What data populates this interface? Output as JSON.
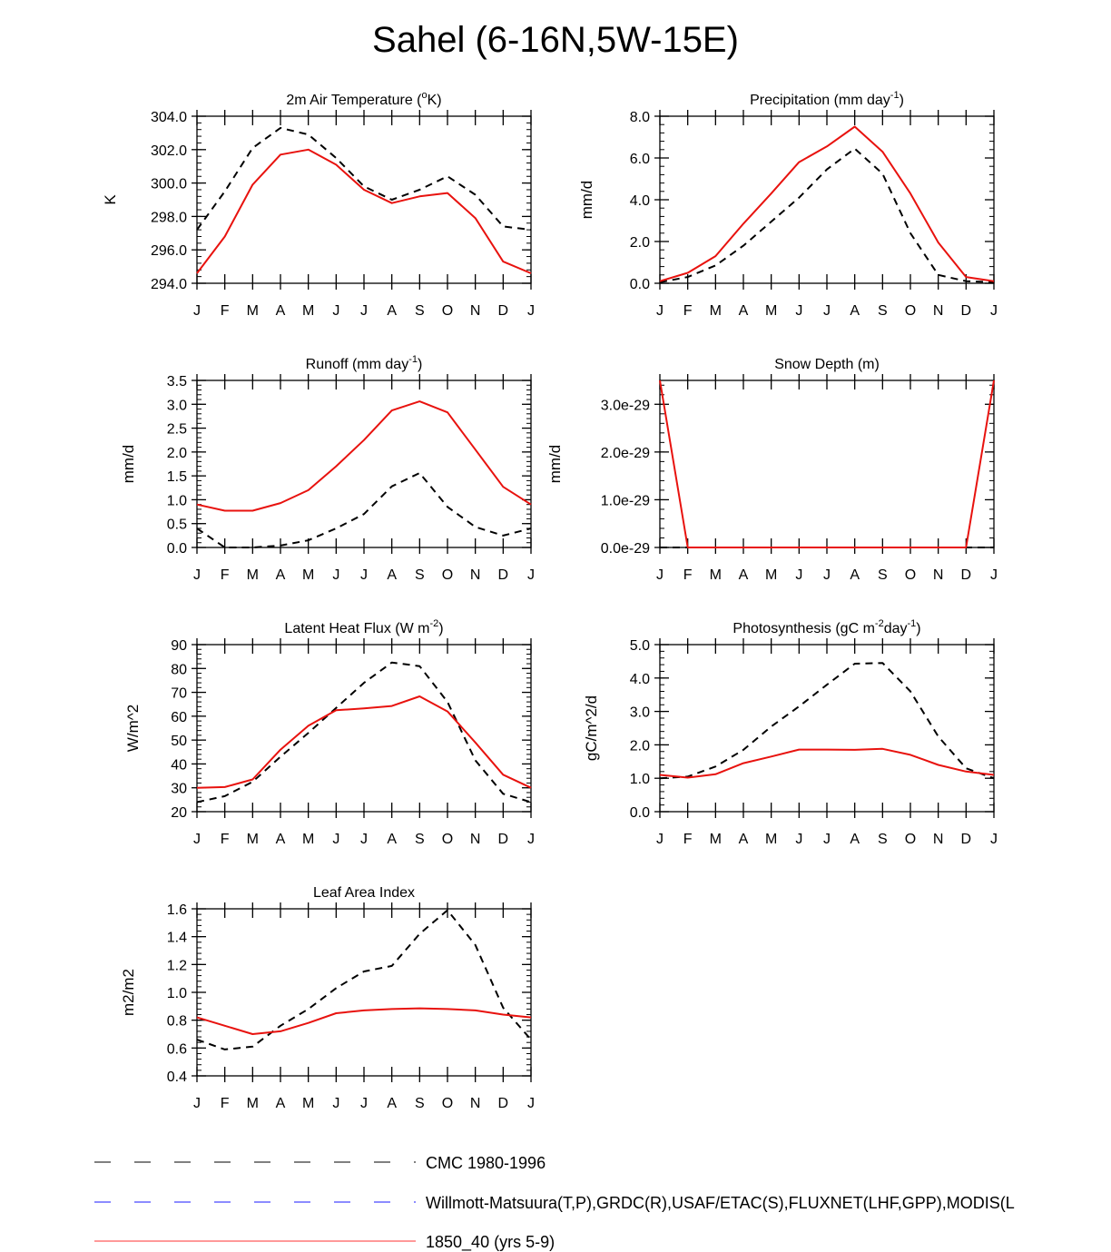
{
  "title": "Sahel (6-16N,5W-15E)",
  "colors": {
    "model": "#e8120e",
    "obs": "#000000",
    "obs2": "#1a1aff"
  },
  "months": [
    "J",
    "F",
    "M",
    "A",
    "M",
    "J",
    "J",
    "A",
    "S",
    "O",
    "N",
    "D",
    "J"
  ],
  "legend": [
    {
      "label": "CMC 1980-1996",
      "style": "dash",
      "color": "#000000"
    },
    {
      "label": "Willmott-Matsuura(T,P),GRDC(R),USAF/ETAC(S),FLUXNET(LHF,GPP),MODIS(L",
      "style": "dash",
      "color": "#1a1aff"
    },
    {
      "label": "1850_40 (yrs 5-9)",
      "style": "solid",
      "color": "#ff3333"
    }
  ],
  "chart_data": [
    {
      "type": "line",
      "title": "2m Air Temperature (oK)",
      "title_parts": {
        "pre": "2m Air Temperature (",
        "sup": "o",
        "post": "K)"
      },
      "ylabel": "K",
      "ylim": [
        294,
        304
      ],
      "yticks": [
        294,
        296,
        298,
        300,
        302,
        304
      ],
      "yticklabels": [
        "294.0",
        "296.0",
        "298.0",
        "300.0",
        "302.0",
        "304.0"
      ],
      "categories": [
        "J",
        "F",
        "M",
        "A",
        "M",
        "J",
        "J",
        "A",
        "S",
        "O",
        "N",
        "D",
        "J"
      ],
      "series": [
        {
          "name": "CMC 1980-1996",
          "style": "dash",
          "values": [
            297.2,
            299.5,
            302.1,
            303.3,
            302.9,
            301.5,
            299.8,
            299.0,
            299.6,
            300.4,
            299.3,
            297.4,
            297.2
          ]
        },
        {
          "name": "1850_40 (yrs 5-9)",
          "style": "solid",
          "values": [
            294.6,
            296.8,
            299.9,
            301.7,
            302.0,
            301.1,
            299.6,
            298.8,
            299.2,
            299.4,
            297.9,
            295.3,
            294.6
          ]
        }
      ]
    },
    {
      "type": "line",
      "title": "Precipitation (mm day-1)",
      "title_parts": {
        "pre": "Precipitation (mm day",
        "sup": "-1",
        "post": ")"
      },
      "ylabel": "mm/d",
      "ylim": [
        0,
        8
      ],
      "yticks": [
        0,
        2,
        4,
        6,
        8
      ],
      "yticklabels": [
        "0.0",
        "2.0",
        "4.0",
        "6.0",
        "8.0"
      ],
      "categories": [
        "J",
        "F",
        "M",
        "A",
        "M",
        "J",
        "J",
        "A",
        "S",
        "O",
        "N",
        "D",
        "J"
      ],
      "series": [
        {
          "name": "CMC 1980-1996",
          "style": "dash",
          "values": [
            0.05,
            0.3,
            0.85,
            1.8,
            2.95,
            4.1,
            5.45,
            6.45,
            5.25,
            2.4,
            0.4,
            0.1,
            0.05
          ]
        },
        {
          "name": "1850_40 (yrs 5-9)",
          "style": "solid",
          "values": [
            0.1,
            0.5,
            1.3,
            2.85,
            4.3,
            5.8,
            6.55,
            7.5,
            6.3,
            4.3,
            1.95,
            0.3,
            0.1
          ]
        }
      ]
    },
    {
      "type": "line",
      "title": "Runoff (mm day-1)",
      "title_parts": {
        "pre": "Runoff (mm day",
        "sup": "-1",
        "post": ")"
      },
      "ylabel": "mm/d",
      "ylim": [
        0,
        3.5
      ],
      "yticks": [
        0,
        0.5,
        1,
        1.5,
        2,
        2.5,
        3,
        3.5
      ],
      "yticklabels": [
        "0.0",
        "0.5",
        "1.0",
        "1.5",
        "2.0",
        "2.5",
        "3.0",
        "3.5"
      ],
      "categories": [
        "J",
        "F",
        "M",
        "A",
        "M",
        "J",
        "J",
        "A",
        "S",
        "O",
        "N",
        "D",
        "J"
      ],
      "series": [
        {
          "name": "CMC 1980-1996",
          "style": "dash",
          "values": [
            0.4,
            0.0,
            0.0,
            0.04,
            0.15,
            0.4,
            0.7,
            1.28,
            1.56,
            0.85,
            0.43,
            0.25,
            0.4
          ]
        },
        {
          "name": "1850_40 (yrs 5-9)",
          "style": "solid",
          "values": [
            0.9,
            0.77,
            0.77,
            0.93,
            1.2,
            1.7,
            2.25,
            2.87,
            3.06,
            2.83,
            2.05,
            1.27,
            0.9
          ]
        }
      ]
    },
    {
      "type": "line",
      "title": "Snow Depth (m)",
      "title_parts": {
        "pre": "Snow Depth (m)",
        "sup": "",
        "post": ""
      },
      "ylabel": "mm/d",
      "ylim": [
        0,
        3.5e-29
      ],
      "yticks": [
        0,
        1e-29,
        2e-29,
        3e-29
      ],
      "yticklabels": [
        "0.0e-29",
        "1.0e-29",
        "2.0e-29",
        "3.0e-29"
      ],
      "categories": [
        "J",
        "F",
        "M",
        "A",
        "M",
        "J",
        "J",
        "A",
        "S",
        "O",
        "N",
        "D",
        "J"
      ],
      "series": [
        {
          "name": "CMC 1980-1996",
          "style": "dash",
          "values": [
            0,
            0,
            0,
            0,
            0,
            0,
            0,
            0,
            0,
            0,
            0,
            0,
            0
          ]
        },
        {
          "name": "1850_40 (yrs 5-9)",
          "style": "solid",
          "values": [
            3.5e-29,
            0,
            0,
            0,
            0,
            0,
            0,
            0,
            0,
            0,
            0,
            0,
            3.5e-29
          ]
        }
      ]
    },
    {
      "type": "line",
      "title": "Latent Heat Flux (W m-2)",
      "title_parts": {
        "pre": "Latent Heat Flux (W m",
        "sup": "-2",
        "post": ")"
      },
      "ylabel": "W/m^2",
      "ylim": [
        20,
        90
      ],
      "yticks": [
        20,
        30,
        40,
        50,
        60,
        70,
        80,
        90
      ],
      "yticklabels": [
        "20",
        "30",
        "40",
        "50",
        "60",
        "70",
        "80",
        "90"
      ],
      "categories": [
        "J",
        "F",
        "M",
        "A",
        "M",
        "J",
        "J",
        "A",
        "S",
        "O",
        "N",
        "D",
        "J"
      ],
      "series": [
        {
          "name": "CMC 1980-1996",
          "style": "dash",
          "values": [
            24,
            26.5,
            32.5,
            43,
            53,
            63.5,
            74,
            82.5,
            81,
            66,
            41.5,
            27.5,
            24
          ]
        },
        {
          "name": "1850_40 (yrs 5-9)",
          "style": "solid",
          "values": [
            30,
            30.3,
            33.5,
            46,
            56,
            62.5,
            63.3,
            64.3,
            68.3,
            62,
            49,
            35.5,
            30
          ]
        }
      ]
    },
    {
      "type": "line",
      "title": "Photosynthesis (gC m-2day-1)",
      "title_parts": {
        "pre": "Photosynthesis (gC m",
        "sup": "-2",
        "post": "day",
        "sup2": "-1",
        "post2": ")"
      },
      "ylabel": "gC/m^2/d",
      "ylim": [
        0,
        5
      ],
      "yticks": [
        0,
        1,
        2,
        3,
        4,
        5
      ],
      "yticklabels": [
        "0.0",
        "1.0",
        "2.0",
        "3.0",
        "4.0",
        "5.0"
      ],
      "categories": [
        "J",
        "F",
        "M",
        "A",
        "M",
        "J",
        "J",
        "A",
        "S",
        "O",
        "N",
        "D",
        "J"
      ],
      "series": [
        {
          "name": "CMC 1980-1996",
          "style": "dash",
          "values": [
            1.0,
            1.05,
            1.35,
            1.85,
            2.55,
            3.15,
            3.8,
            4.43,
            4.45,
            3.6,
            2.25,
            1.3,
            1.0
          ]
        },
        {
          "name": "1850_40 (yrs 5-9)",
          "style": "solid",
          "values": [
            1.1,
            1.02,
            1.12,
            1.45,
            1.65,
            1.86,
            1.86,
            1.85,
            1.88,
            1.7,
            1.4,
            1.2,
            1.1
          ]
        }
      ]
    },
    {
      "type": "line",
      "title": "Leaf Area Index",
      "title_parts": {
        "pre": "Leaf Area Index",
        "sup": "",
        "post": ""
      },
      "ylabel": "m2/m2",
      "ylim": [
        0.4,
        1.6
      ],
      "yticks": [
        0.4,
        0.6,
        0.8,
        1.0,
        1.2,
        1.4,
        1.6
      ],
      "yticklabels": [
        "0.4",
        "0.6",
        "0.8",
        "1.0",
        "1.2",
        "1.4",
        "1.6"
      ],
      "categories": [
        "J",
        "F",
        "M",
        "A",
        "M",
        "J",
        "J",
        "A",
        "S",
        "O",
        "N",
        "D",
        "J"
      ],
      "series": [
        {
          "name": "CMC 1980-1996",
          "style": "dash",
          "values": [
            0.66,
            0.59,
            0.61,
            0.76,
            0.88,
            1.03,
            1.15,
            1.19,
            1.42,
            1.59,
            1.34,
            0.89,
            0.66
          ]
        },
        {
          "name": "1850_40 (yrs 5-9)",
          "style": "solid",
          "values": [
            0.82,
            0.76,
            0.7,
            0.72,
            0.78,
            0.85,
            0.87,
            0.88,
            0.885,
            0.88,
            0.87,
            0.84,
            0.82
          ]
        }
      ]
    }
  ]
}
